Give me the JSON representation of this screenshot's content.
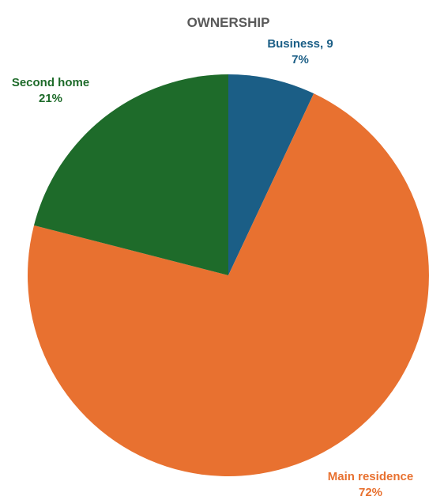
{
  "chart_data": {
    "type": "pie",
    "title": "OWNERSHIP",
    "slices": [
      {
        "label": "Business, 9",
        "value": 7,
        "value_label": "7%",
        "color": "#1b5e86"
      },
      {
        "label": "Main residence",
        "value": 72,
        "value_label": "72%",
        "color": "#e87130"
      },
      {
        "label": "Second home",
        "value": 21,
        "value_label": "21%",
        "color": "#1e6b2a"
      }
    ],
    "start": "12 o'clock",
    "direction": "clockwise",
    "legend": "none"
  }
}
